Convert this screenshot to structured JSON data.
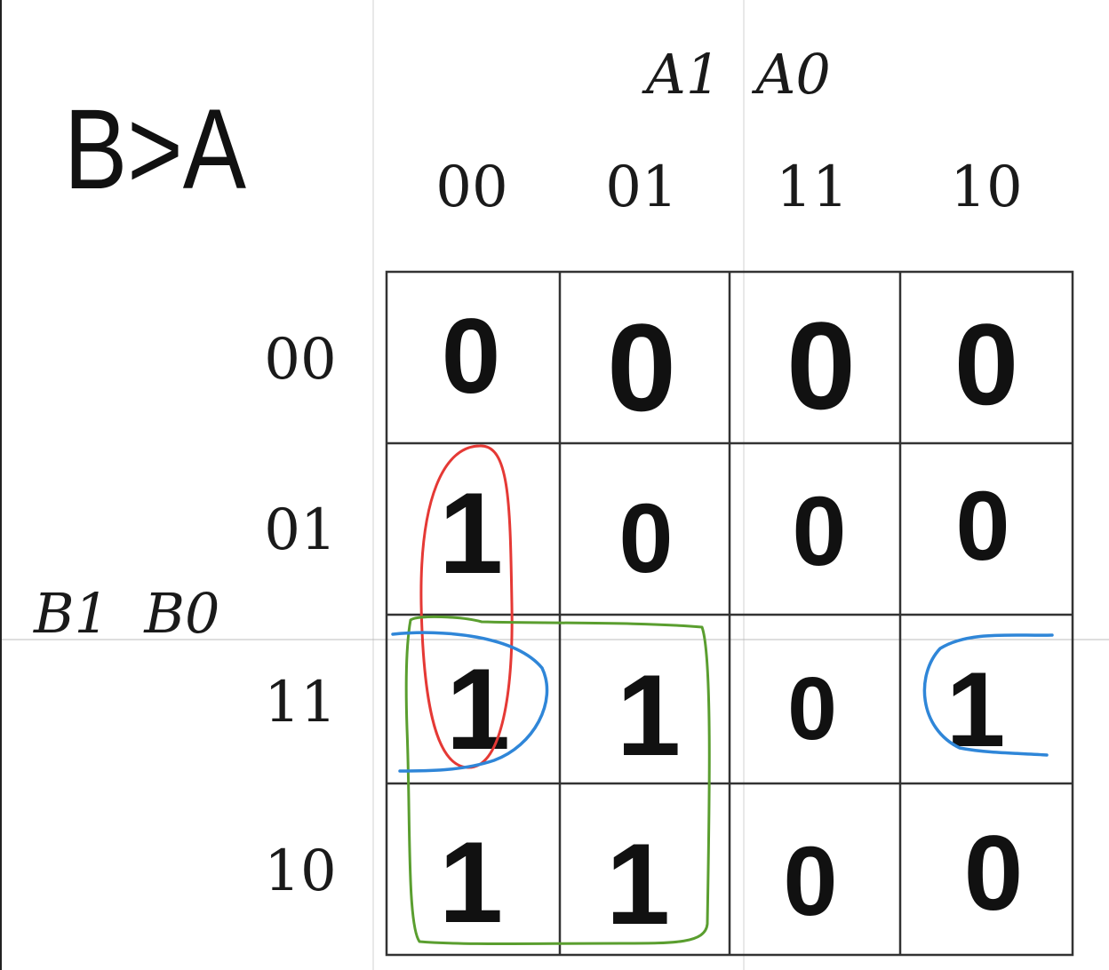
{
  "title": "B>A",
  "column_variables": "A1  A0",
  "row_variables": "B1  B0",
  "column_labels": [
    "00",
    "01",
    "11",
    "10"
  ],
  "row_labels": [
    "00",
    "01",
    "11",
    "10"
  ],
  "cells": [
    [
      "0",
      "0",
      "0",
      "0"
    ],
    [
      "1",
      "0",
      "0",
      "0"
    ],
    [
      "1",
      "1",
      "0",
      "1"
    ],
    [
      "1",
      "1",
      "0",
      "0"
    ]
  ],
  "groups": [
    {
      "name": "red-group",
      "color": "#e53935",
      "rows": [
        1,
        2
      ],
      "cols": [
        0
      ]
    },
    {
      "name": "green-group",
      "color": "#5a9e2f",
      "rows": [
        2,
        3
      ],
      "cols": [
        0,
        1
      ]
    },
    {
      "name": "blue-group",
      "color": "#2f86d8",
      "rows": [
        2
      ],
      "cols": [
        0,
        3
      ],
      "wraps": true
    }
  ]
}
